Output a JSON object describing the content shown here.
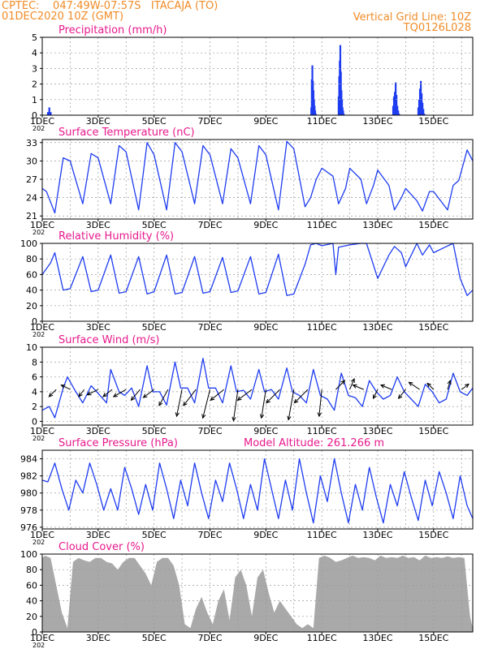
{
  "header": {
    "line1_left": "CPTEC:    047:49W-07:57S   ITACAJA (TO)",
    "line2_left": "01DEC2020 10Z (GMT)",
    "line1_right": "Vertical Grid Line: 10Z",
    "line2_right": "TQ0126L028",
    "color": "#f08c28"
  },
  "colors": {
    "title": "#e8198c",
    "line": "#1e3cf0",
    "bar": "#1e3cf0",
    "cloud": "#a9a9a9",
    "arrow": "#000000",
    "grid": "#9a9a9a"
  },
  "x_tick_labels": [
    "1DEC",
    "3DEC",
    "5DEC",
    "7DEC",
    "9DEC",
    "11DEC",
    "13DEC",
    "15DEC"
  ],
  "x_year_fragment": "202",
  "chart_data": [
    {
      "id": "precip",
      "type": "bar",
      "title": "Precipitation (mm/h)",
      "xlim": [
        0,
        15.4
      ],
      "ylim": [
        0,
        5
      ],
      "yticks": [
        0,
        1,
        2,
        3,
        4,
        5
      ],
      "x": [
        0.2,
        0.25,
        0.3,
        9.62,
        9.64,
        9.66,
        9.68,
        9.7,
        9.72,
        9.74,
        9.76,
        9.78,
        10.6,
        10.62,
        10.64,
        10.66,
        10.68,
        10.7,
        10.72,
        10.74,
        10.76,
        10.78,
        12.55,
        12.58,
        12.61,
        12.64,
        12.67,
        12.7,
        12.73,
        12.76,
        13.45,
        13.48,
        13.51,
        13.54,
        13.57,
        13.6,
        13.63,
        13.66
      ],
      "values": [
        0.2,
        0.5,
        0.2,
        0.5,
        2.3,
        3.2,
        2.2,
        1.6,
        1.0,
        0.6,
        0.3,
        0.1,
        1.2,
        2.5,
        3.5,
        4.5,
        2.8,
        1.6,
        1.0,
        0.5,
        0.3,
        0.1,
        0.6,
        1.2,
        1.5,
        2.1,
        1.3,
        0.6,
        0.3,
        0.1,
        0.5,
        1.0,
        1.7,
        2.2,
        1.4,
        0.8,
        0.4,
        0.1
      ]
    },
    {
      "id": "temp",
      "type": "line",
      "title": "Surface Temperature (nC)",
      "xlim": [
        0,
        15.4
      ],
      "ylim": [
        20.5,
        33.5
      ],
      "yticks": [
        21,
        24,
        27,
        30,
        33
      ],
      "x": [
        0,
        0.15,
        0.45,
        0.75,
        1.0,
        1.45,
        1.75,
        2.0,
        2.45,
        2.75,
        3.0,
        3.45,
        3.75,
        4.0,
        4.45,
        4.75,
        5.0,
        5.45,
        5.75,
        6.0,
        6.45,
        6.75,
        7.0,
        7.45,
        7.75,
        8.0,
        8.45,
        8.75,
        9.0,
        9.4,
        9.6,
        9.8,
        10.0,
        10.4,
        10.6,
        10.85,
        11.0,
        11.4,
        11.6,
        11.85,
        12.0,
        12.4,
        12.6,
        12.85,
        13.0,
        13.4,
        13.6,
        13.85,
        14.0,
        14.5,
        14.7,
        14.9,
        15.2,
        15.4
      ],
      "values": [
        25.5,
        25,
        21.5,
        30.5,
        30,
        23,
        31.2,
        30.5,
        23,
        32.5,
        31.5,
        22,
        33,
        31,
        22,
        33,
        31.5,
        23,
        32.5,
        31,
        23,
        32,
        30.5,
        23,
        32.5,
        31,
        22,
        33.2,
        32,
        22.5,
        24,
        27,
        28.8,
        27.5,
        23,
        25.5,
        28.8,
        27,
        23,
        26,
        28.5,
        26,
        22,
        24,
        25.5,
        23.5,
        21.8,
        25,
        25,
        22,
        26,
        26.8,
        31.8,
        30
      ]
    },
    {
      "id": "rh",
      "type": "line",
      "title": "Relative Humidity (%)",
      "xlim": [
        0,
        15.4
      ],
      "ylim": [
        0,
        100
      ],
      "yticks": [
        0,
        20,
        40,
        60,
        80,
        100
      ],
      "x": [
        0,
        0.3,
        0.45,
        0.75,
        1.0,
        1.45,
        1.75,
        2.0,
        2.45,
        2.75,
        3.0,
        3.45,
        3.75,
        4.0,
        4.45,
        4.75,
        5.0,
        5.45,
        5.75,
        6.0,
        6.45,
        6.75,
        7.0,
        7.45,
        7.75,
        8.0,
        8.45,
        8.75,
        9.0,
        9.4,
        9.6,
        9.8,
        10.0,
        10.4,
        10.5,
        10.6,
        11.0,
        11.4,
        11.6,
        12.0,
        12.4,
        12.6,
        12.85,
        13.0,
        13.4,
        13.6,
        13.85,
        14.0,
        14.4,
        14.7,
        14.95,
        15.2,
        15.4
      ],
      "values": [
        60,
        75,
        88,
        40,
        42,
        83,
        38,
        40,
        85,
        36,
        38,
        83,
        35,
        38,
        85,
        35,
        37,
        83,
        36,
        38,
        82,
        37,
        39,
        83,
        35,
        37,
        86,
        33,
        35,
        73,
        98,
        100,
        97,
        100,
        60,
        95,
        98,
        100,
        100,
        55,
        85,
        96,
        88,
        70,
        100,
        85,
        98,
        88,
        95,
        100,
        55,
        33,
        40
      ]
    },
    {
      "id": "wind",
      "type": "line",
      "title": "Surface Wind (m/s)",
      "xlim": [
        0,
        15.4
      ],
      "ylim": [
        -0.5,
        10
      ],
      "yticks": [
        0,
        2,
        4,
        6,
        8,
        10
      ],
      "x": [
        0,
        0.25,
        0.45,
        0.75,
        0.9,
        1.2,
        1.45,
        1.75,
        1.95,
        2.3,
        2.45,
        2.75,
        2.95,
        3.2,
        3.45,
        3.75,
        3.95,
        4.2,
        4.45,
        4.75,
        4.95,
        5.2,
        5.45,
        5.75,
        5.95,
        6.2,
        6.45,
        6.75,
        6.95,
        7.2,
        7.45,
        7.75,
        7.95,
        8.2,
        8.45,
        8.75,
        8.95,
        9.2,
        9.45,
        9.7,
        9.95,
        10.2,
        10.45,
        10.7,
        10.95,
        11.2,
        11.45,
        11.7,
        11.95,
        12.2,
        12.45,
        12.7,
        12.95,
        13.2,
        13.45,
        13.7,
        13.95,
        14.2,
        14.45,
        14.7,
        14.95,
        15.2,
        15.4
      ],
      "values": [
        1.5,
        2,
        0.5,
        4.5,
        6,
        4,
        2.5,
        4.8,
        4,
        2.5,
        7,
        4,
        3.5,
        4.5,
        2,
        7.5,
        4,
        4,
        2.2,
        8,
        4.5,
        4.5,
        2.5,
        8.5,
        4.5,
        4.5,
        2.5,
        7.5,
        4,
        4.2,
        3,
        7,
        4,
        4.3,
        3,
        7.2,
        4,
        3.5,
        2.5,
        7,
        3.5,
        3,
        1.5,
        6.5,
        3.5,
        3.2,
        2,
        5.5,
        4,
        3,
        3.5,
        6,
        4,
        3,
        2,
        5,
        4,
        2.5,
        3,
        6.5,
        4,
        3.5,
        4.5
      ],
      "vectors": {
        "x": [
          0.5,
          1.0,
          1.5,
          2.0,
          2.5,
          3.0,
          3.5,
          4.0,
          4.5,
          5.0,
          5.5,
          6.0,
          6.5,
          7.0,
          7.5,
          8.0,
          8.5,
          9.0,
          9.5,
          10.0,
          10.5,
          11.0,
          11.5,
          12.0,
          12.5,
          13.0,
          13.5,
          14.0,
          14.5,
          15.0
        ],
        "u": [
          -0.8,
          -1.0,
          -0.6,
          -1.2,
          -1.0,
          -1.4,
          -1.0,
          -1.2,
          -1.0,
          -0.6,
          -1.4,
          -0.8,
          -1.5,
          -0.5,
          -1.6,
          -0.5,
          -1.5,
          -0.6,
          -1.5,
          -0.3,
          1.0,
          0.5,
          -1.2,
          -0.5,
          -1.2,
          -0.8,
          -1.2,
          -0.7,
          0.3,
          0.8
        ],
        "v": [
          -0.8,
          0.5,
          -0.8,
          -0.6,
          -0.8,
          -0.8,
          -1.2,
          -0.9,
          -1.8,
          -3.0,
          -1.8,
          -3.2,
          -1.2,
          -3.5,
          -1.2,
          -3.2,
          -1.5,
          -3.4,
          -1.5,
          -3.0,
          1.0,
          1.2,
          0.5,
          -1.0,
          0.5,
          -1.0,
          0.8,
          0.7,
          1.0,
          0.6
        ]
      }
    },
    {
      "id": "pres",
      "type": "line",
      "title": "Surface Pressure (hPa)",
      "extra_title": "Model Altitude: 261.266 m",
      "xlim": [
        0,
        15.4
      ],
      "ylim": [
        975.8,
        985
      ],
      "yticks": [
        976,
        978,
        980,
        982,
        984
      ],
      "x": [
        0,
        0.2,
        0.45,
        0.7,
        0.95,
        1.2,
        1.45,
        1.7,
        1.95,
        2.2,
        2.45,
        2.7,
        2.95,
        3.2,
        3.45,
        3.7,
        3.95,
        4.2,
        4.45,
        4.7,
        4.95,
        5.2,
        5.45,
        5.7,
        5.95,
        6.2,
        6.45,
        6.7,
        6.95,
        7.2,
        7.45,
        7.7,
        7.95,
        8.2,
        8.45,
        8.7,
        8.95,
        9.2,
        9.45,
        9.7,
        9.95,
        10.2,
        10.45,
        10.7,
        10.95,
        11.2,
        11.45,
        11.7,
        11.95,
        12.2,
        12.45,
        12.7,
        12.95,
        13.2,
        13.45,
        13.7,
        13.95,
        14.2,
        14.45,
        14.7,
        14.95,
        15.2,
        15.4
      ],
      "values": [
        981.5,
        981.3,
        983.5,
        980.5,
        978,
        981.5,
        980,
        983.5,
        981,
        978,
        980.5,
        978,
        983,
        980.5,
        977.5,
        981,
        978,
        983.5,
        980.5,
        977,
        981.5,
        978.5,
        983.5,
        980,
        977,
        981.5,
        979,
        983.5,
        980.5,
        977,
        981,
        978,
        984,
        980.5,
        977,
        981.5,
        978,
        984,
        980,
        976.5,
        982,
        979,
        984,
        980,
        976.5,
        981,
        978,
        983,
        979.5,
        976.5,
        981,
        978.5,
        982.5,
        979.5,
        976.8,
        981.5,
        978.5,
        982.5,
        980,
        977,
        982,
        978.5,
        977
      ]
    },
    {
      "id": "cloud",
      "type": "area",
      "title": "Cloud Cover (%)",
      "xlim": [
        0,
        15.4
      ],
      "ylim": [
        0,
        100
      ],
      "yticks": [
        0,
        20,
        40,
        60,
        80,
        100
      ],
      "x": [
        0,
        0.1,
        0.3,
        0.5,
        0.7,
        0.9,
        1.1,
        1.3,
        1.5,
        1.7,
        1.9,
        2.1,
        2.3,
        2.5,
        2.7,
        2.9,
        3.1,
        3.3,
        3.5,
        3.7,
        3.9,
        4.1,
        4.3,
        4.5,
        4.7,
        4.9,
        5.1,
        5.3,
        5.5,
        5.7,
        5.9,
        6.1,
        6.3,
        6.5,
        6.7,
        6.9,
        7.1,
        7.3,
        7.5,
        7.7,
        7.9,
        8.1,
        8.3,
        8.5,
        8.7,
        8.9,
        9.1,
        9.3,
        9.5,
        9.7,
        9.9,
        10.1,
        10.3,
        10.5,
        10.7,
        10.9,
        11.1,
        11.3,
        11.5,
        11.7,
        11.9,
        12.1,
        12.3,
        12.5,
        12.7,
        12.9,
        13.1,
        13.3,
        13.5,
        13.7,
        13.9,
        14.1,
        14.3,
        14.5,
        14.7,
        14.9,
        15.1,
        15.3,
        15.4
      ],
      "values": [
        95,
        98,
        95,
        60,
        25,
        5,
        90,
        95,
        92,
        90,
        95,
        95,
        90,
        88,
        80,
        90,
        95,
        95,
        85,
        75,
        60,
        90,
        95,
        95,
        85,
        60,
        10,
        5,
        30,
        45,
        25,
        10,
        40,
        55,
        15,
        70,
        80,
        60,
        20,
        70,
        80,
        50,
        25,
        40,
        30,
        20,
        10,
        5,
        10,
        5,
        95,
        98,
        95,
        90,
        92,
        95,
        98,
        95,
        96,
        95,
        92,
        98,
        95,
        96,
        95,
        98,
        95,
        96,
        92,
        98,
        95,
        96,
        95,
        97,
        95,
        96,
        95,
        20,
        5
      ]
    }
  ]
}
